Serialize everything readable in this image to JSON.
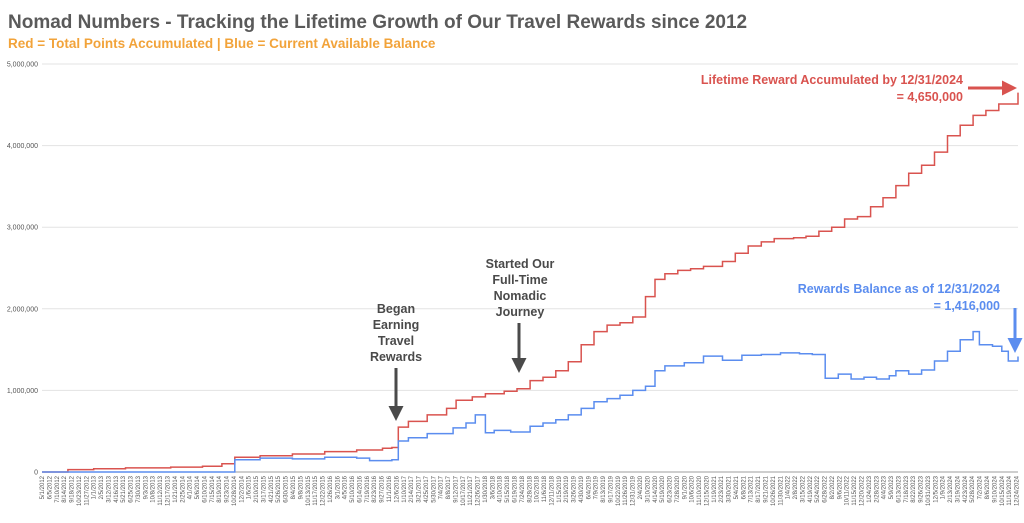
{
  "title": "Nomad Numbers - Tracking the Lifetime Growth of Our Travel Rewards since 2012",
  "subtitle": "Red = Total Points Accumulated | Blue = Current Available Balance",
  "colors": {
    "title": "#5a5a5a",
    "subtitle": "#f2a33a",
    "red": "#d9534f",
    "blue": "#5b8def",
    "annotation": "#4a4a4a",
    "grid": "#e3e3e3"
  },
  "annotations": {
    "began": [
      "Began",
      "Earning",
      "Travel",
      "Rewards"
    ],
    "started": [
      "Started Our",
      "Full-Time",
      "Nomadic",
      "Journey"
    ],
    "lifetime": [
      "Lifetime Reward Accumulated by 12/31/2024",
      "= 4,650,000"
    ],
    "balance": [
      "Rewards Balance as of 12/31/2024",
      "= 1,416,000"
    ]
  },
  "chart_data": {
    "type": "line",
    "title": "Nomad Numbers - Tracking the Lifetime Growth of Our Travel Rewards since 2012",
    "subtitle": "Red = Total Points Accumulated | Blue = Current Available Balance",
    "xlabel": "",
    "ylabel": "",
    "ylim": [
      0,
      5000000
    ],
    "y_ticks": [
      0,
      1000000,
      2000000,
      3000000,
      4000000,
      5000000
    ],
    "y_tick_labels": [
      "0",
      "1,000,000",
      "2,000,000",
      "3,000,000",
      "4,000,000",
      "5,000,000"
    ],
    "grid": true,
    "x_tick_labels": [
      "5/1/2012",
      "6/5/2012",
      "7/10/2012",
      "8/14/2012",
      "9/18/2012",
      "10/23/2012",
      "11/27/2012",
      "1/1/2013",
      "2/5/2013",
      "3/12/2013",
      "4/16/2013",
      "5/21/2013",
      "6/25/2013",
      "7/30/2013",
      "9/3/2013",
      "10/8/2013",
      "11/12/2013",
      "12/17/2013",
      "1/21/2014",
      "2/25/2014",
      "4/1/2014",
      "5/6/2014",
      "6/10/2014",
      "7/15/2014",
      "8/19/2014",
      "9/23/2014",
      "10/28/2014",
      "12/2/2014",
      "1/6/2015",
      "2/10/2015",
      "3/17/2015",
      "4/21/2015",
      "5/26/2015",
      "6/30/2015",
      "8/4/2015",
      "9/8/2015",
      "10/13/2015",
      "11/17/2015",
      "12/22/2015",
      "1/26/2016",
      "3/1/2016",
      "4/5/2016",
      "5/10/2016",
      "6/14/2016",
      "7/19/2016",
      "8/23/2016",
      "9/27/2016",
      "11/1/2016",
      "12/6/2016",
      "1/10/2017",
      "2/14/2017",
      "3/21/2017",
      "4/25/2017",
      "5/30/2017",
      "7/4/2017",
      "8/8/2017",
      "9/12/2017",
      "10/17/2017",
      "11/21/2017",
      "12/26/2017",
      "1/30/2018",
      "3/6/2018",
      "4/10/2018",
      "5/15/2018",
      "6/19/2018",
      "7/24/2018",
      "8/28/2018",
      "10/2/2018",
      "11/6/2018",
      "12/11/2018",
      "1/15/2019",
      "2/19/2019",
      "3/26/2019",
      "4/30/2019",
      "6/4/2019",
      "7/9/2019",
      "8/13/2019",
      "9/17/2019",
      "10/22/2019",
      "11/26/2019",
      "12/31/2019",
      "2/4/2020",
      "3/10/2020",
      "4/14/2020",
      "5/19/2020",
      "6/23/2020",
      "7/28/2020",
      "9/1/2020",
      "10/6/2020",
      "11/10/2020",
      "12/15/2020",
      "1/19/2021",
      "2/23/2021",
      "3/30/2021",
      "5/4/2021",
      "6/8/2021",
      "7/13/2021",
      "8/17/2021",
      "9/21/2021",
      "10/26/2021",
      "11/30/2021",
      "1/4/2022",
      "2/8/2022",
      "3/15/2022",
      "4/19/2022",
      "5/24/2022",
      "6/28/2022",
      "8/2/2022",
      "9/6/2022",
      "10/11/2022",
      "11/15/2022",
      "12/20/2022",
      "1/24/2023",
      "2/28/2023",
      "4/4/2023",
      "5/9/2023",
      "6/13/2023",
      "7/18/2023",
      "8/22/2023",
      "9/26/2023",
      "10/31/2023",
      "12/5/2023",
      "1/9/2024",
      "2/13/2024",
      "3/19/2024",
      "4/23/2024",
      "5/28/2024",
      "7/2/2024",
      "8/6/2024",
      "9/10/2024",
      "10/15/2024",
      "11/19/2024",
      "12/24/2024"
    ],
    "x_range": [
      "5/1/2012",
      "12/31/2024"
    ],
    "series": [
      {
        "name": "Total Points Accumulated",
        "color": "#d9534f",
        "step": true,
        "x": [
          "5/1/2012",
          "9/1/2012",
          "1/1/2013",
          "6/1/2013",
          "1/1/2014",
          "6/1/2014",
          "9/1/2014",
          "11/1/2014",
          "3/1/2015",
          "8/1/2015",
          "1/1/2016",
          "6/1/2016",
          "10/1/2016",
          "11/15/2016",
          "12/15/2016",
          "2/1/2017",
          "5/1/2017",
          "8/1/2017",
          "9/15/2017",
          "12/1/2017",
          "2/1/2018",
          "5/1/2018",
          "7/1/2018",
          "9/1/2018",
          "11/1/2018",
          "1/1/2019",
          "3/1/2019",
          "5/1/2019",
          "7/1/2019",
          "9/1/2019",
          "11/1/2019",
          "1/1/2020",
          "3/1/2020",
          "4/15/2020",
          "6/1/2020",
          "8/1/2020",
          "10/1/2020",
          "12/1/2020",
          "3/1/2021",
          "5/1/2021",
          "7/1/2021",
          "9/1/2021",
          "11/1/2021",
          "2/1/2022",
          "4/1/2022",
          "6/1/2022",
          "8/1/2022",
          "10/1/2022",
          "12/1/2022",
          "2/1/2023",
          "4/1/2023",
          "6/1/2023",
          "8/1/2023",
          "10/1/2023",
          "12/1/2023",
          "2/1/2024",
          "4/1/2024",
          "6/1/2024",
          "8/1/2024",
          "10/1/2024",
          "12/31/2024"
        ],
        "values": [
          0,
          30000,
          40000,
          50000,
          60000,
          70000,
          100000,
          180000,
          200000,
          220000,
          250000,
          270000,
          290000,
          300000,
          550000,
          620000,
          700000,
          780000,
          880000,
          920000,
          960000,
          990000,
          1020000,
          1120000,
          1160000,
          1240000,
          1350000,
          1560000,
          1720000,
          1800000,
          1830000,
          1900000,
          2150000,
          2360000,
          2430000,
          2470000,
          2490000,
          2520000,
          2580000,
          2680000,
          2770000,
          2820000,
          2860000,
          2870000,
          2890000,
          2950000,
          3000000,
          3100000,
          3130000,
          3250000,
          3360000,
          3510000,
          3660000,
          3760000,
          3920000,
          4120000,
          4250000,
          4370000,
          4430000,
          4510000,
          4650000
        ]
      },
      {
        "name": "Current Available Balance",
        "color": "#5b8def",
        "step": true,
        "x": [
          "5/1/2012",
          "9/1/2014",
          "11/1/2014",
          "3/1/2015",
          "8/1/2015",
          "1/1/2016",
          "6/1/2016",
          "8/1/2016",
          "11/15/2016",
          "12/15/2016",
          "2/1/2017",
          "5/1/2017",
          "9/1/2017",
          "11/1/2017",
          "12/15/2017",
          "2/1/2018",
          "3/15/2018",
          "6/1/2018",
          "9/1/2018",
          "11/1/2018",
          "1/1/2019",
          "3/1/2019",
          "5/1/2019",
          "7/1/2019",
          "9/1/2019",
          "11/1/2019",
          "1/1/2020",
          "3/1/2020",
          "4/15/2020",
          "6/1/2020",
          "9/1/2020",
          "12/1/2020",
          "3/1/2021",
          "6/1/2021",
          "9/1/2021",
          "12/1/2021",
          "3/1/2022",
          "5/1/2022",
          "7/1/2022",
          "9/1/2022",
          "11/1/2022",
          "1/1/2023",
          "3/1/2023",
          "5/1/2023",
          "6/1/2023",
          "8/1/2023",
          "10/1/2023",
          "12/1/2023",
          "2/1/2024",
          "4/1/2024",
          "6/1/2024",
          "7/1/2024",
          "9/1/2024",
          "10/15/2024",
          "11/15/2024",
          "12/31/2024"
        ],
        "values": [
          0,
          0,
          150000,
          170000,
          160000,
          180000,
          170000,
          140000,
          150000,
          380000,
          420000,
          470000,
          540000,
          600000,
          700000,
          480000,
          510000,
          490000,
          560000,
          600000,
          640000,
          700000,
          780000,
          860000,
          900000,
          940000,
          1000000,
          1050000,
          1240000,
          1300000,
          1340000,
          1420000,
          1370000,
          1430000,
          1440000,
          1460000,
          1450000,
          1440000,
          1150000,
          1200000,
          1140000,
          1160000,
          1140000,
          1180000,
          1240000,
          1200000,
          1250000,
          1360000,
          1480000,
          1620000,
          1720000,
          1560000,
          1540000,
          1480000,
          1360000,
          1416000
        ]
      }
    ],
    "annotations": [
      {
        "text": "Began Earning Travel Rewards",
        "x": "12/1/2016",
        "y": 550000
      },
      {
        "text": "Started Our Full-Time Nomadic Journey",
        "x": "8/1/2018",
        "y": 1120000
      },
      {
        "text": "Lifetime Reward Accumulated by 12/31/2024 = 4,650,000",
        "x": "12/31/2024",
        "y": 4650000
      },
      {
        "text": "Rewards Balance as of 12/31/2024 = 1,416,000",
        "x": "12/31/2024",
        "y": 1416000
      }
    ]
  }
}
